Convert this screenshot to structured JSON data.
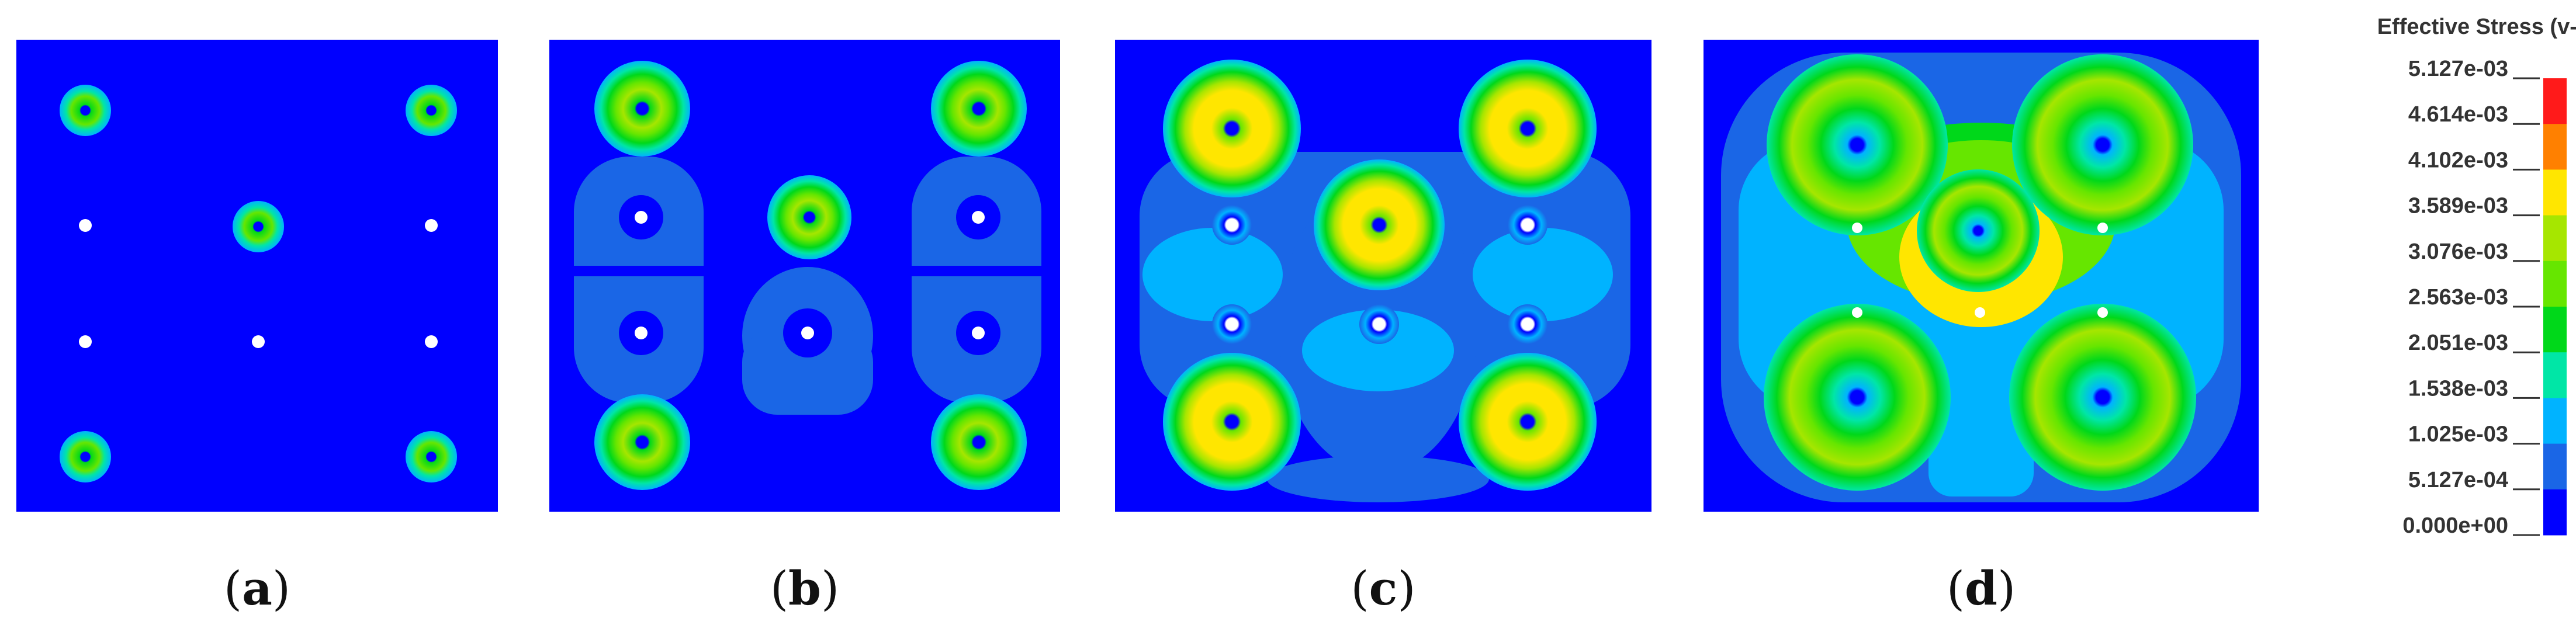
{
  "colors": {
    "background": "#0000ff",
    "levels": [
      "#0000ff",
      "#1a66e6",
      "#00b3ff",
      "#00e6a6",
      "#00d81a",
      "#66e600",
      "#a6e600",
      "#ffe600",
      "#ff8000",
      "#ff1a1a"
    ]
  },
  "panels": [
    {
      "id": "a",
      "caption": {
        "open": "(",
        "letter": "a",
        "close": ")"
      }
    },
    {
      "id": "b",
      "caption": {
        "open": "(",
        "letter": "b",
        "close": ")"
      }
    },
    {
      "id": "c",
      "caption": {
        "open": "(",
        "letter": "c",
        "close": ")"
      }
    },
    {
      "id": "d",
      "caption": {
        "open": "(",
        "letter": "d",
        "close": ")"
      }
    }
  ],
  "legend": {
    "title": "Effective Stress (v-m)",
    "ticks": [
      "5.127e-03",
      "4.614e-03",
      "4.102e-03",
      "3.589e-03",
      "3.076e-03",
      "2.563e-03",
      "2.051e-03",
      "1.538e-03",
      "1.025e-03",
      "5.127e-04",
      "0.000e+00"
    ]
  }
}
